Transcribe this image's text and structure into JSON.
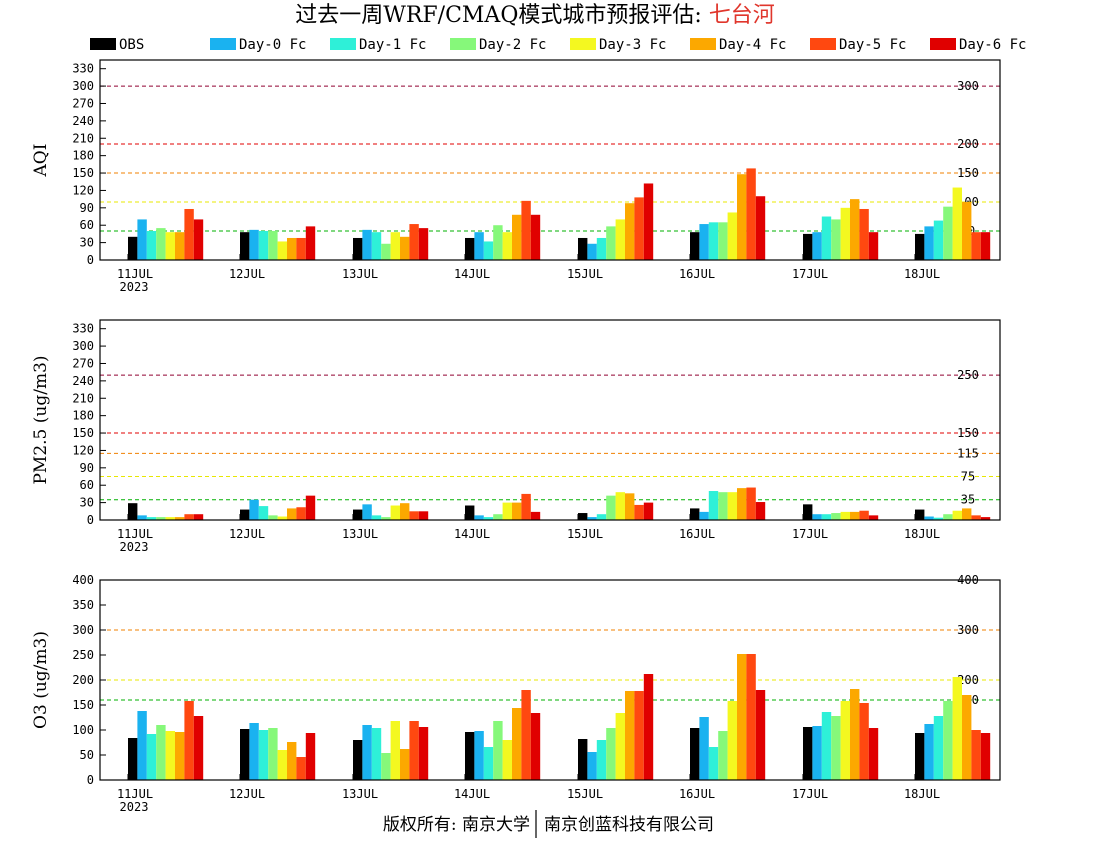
{
  "title": {
    "prefix": "过去一周WRF/CMAQ模式城市预报评估: ",
    "city": "七台河"
  },
  "colors": {
    "city": "#e0362c",
    "series": [
      "#000000",
      "#1ab2f0",
      "#2ef0d8",
      "#86f87a",
      "#f4f820",
      "#fca800",
      "#ff4810",
      "#e00000"
    ]
  },
  "legend": [
    "OBS",
    "Day-0 Fc",
    "Day-1 Fc",
    "Day-2 Fc",
    "Day-3 Fc",
    "Day-4 Fc",
    "Day-5 Fc",
    "Day-6 Fc"
  ],
  "footer": {
    "left": "版权所有: 南京大学",
    "right": "南京创蓝科技有限公司"
  },
  "chart_data": [
    {
      "type": "bar",
      "ylabel": "AQI",
      "ylim": [
        0,
        345
      ],
      "yticks": [
        0,
        30,
        60,
        90,
        120,
        150,
        180,
        210,
        240,
        270,
        300,
        330
      ],
      "categories": [
        "11JUL",
        "12JUL",
        "13JUL",
        "14JUL",
        "15JUL",
        "16JUL",
        "17JUL",
        "18JUL"
      ],
      "year_label": "2023",
      "thresholds": [
        {
          "value": 50,
          "label": "50",
          "color": "#00b000"
        },
        {
          "value": 100,
          "label": "100",
          "color": "#e8e800"
        },
        {
          "value": 150,
          "label": "150",
          "color": "#f08000"
        },
        {
          "value": 200,
          "label": "200",
          "color": "#e00000"
        },
        {
          "value": 300,
          "label": "300",
          "color": "#900030"
        }
      ],
      "series": [
        {
          "name": "OBS",
          "values": [
            40,
            48,
            38,
            38,
            38,
            48,
            45,
            45
          ]
        },
        {
          "name": "Day-0 Fc",
          "values": [
            70,
            52,
            52,
            48,
            28,
            62,
            48,
            58
          ]
        },
        {
          "name": "Day-1 Fc",
          "values": [
            50,
            50,
            48,
            32,
            38,
            65,
            75,
            68
          ]
        },
        {
          "name": "Day-2 Fc",
          "values": [
            55,
            50,
            28,
            60,
            58,
            65,
            70,
            92
          ]
        },
        {
          "name": "Day-3 Fc",
          "values": [
            48,
            32,
            48,
            48,
            70,
            82,
            90,
            125
          ]
        },
        {
          "name": "Day-4 Fc",
          "values": [
            48,
            38,
            40,
            78,
            98,
            148,
            105,
            100
          ]
        },
        {
          "name": "Day-5 Fc",
          "values": [
            88,
            38,
            62,
            102,
            108,
            158,
            88,
            48
          ]
        },
        {
          "name": "Day-6 Fc",
          "values": [
            70,
            58,
            55,
            78,
            132,
            110,
            48,
            48
          ]
        }
      ]
    },
    {
      "type": "bar",
      "ylabel": "PM2.5 (ug/m3)",
      "ylim": [
        0,
        345
      ],
      "yticks": [
        0,
        30,
        60,
        90,
        120,
        150,
        180,
        210,
        240,
        270,
        300,
        330
      ],
      "categories": [
        "11JUL",
        "12JUL",
        "13JUL",
        "14JUL",
        "15JUL",
        "16JUL",
        "17JUL",
        "18JUL"
      ],
      "year_label": "2023",
      "thresholds": [
        {
          "value": 35,
          "label": "35",
          "color": "#00b000"
        },
        {
          "value": 75,
          "label": "75",
          "color": "#e8e800"
        },
        {
          "value": 115,
          "label": "115",
          "color": "#f08000"
        },
        {
          "value": 150,
          "label": "150",
          "color": "#e00000"
        },
        {
          "value": 250,
          "label": "250",
          "color": "#900030"
        }
      ],
      "series": [
        {
          "name": "OBS",
          "values": [
            29,
            18,
            18,
            25,
            12,
            20,
            27,
            18
          ]
        },
        {
          "name": "Day-0 Fc",
          "values": [
            8,
            35,
            27,
            8,
            5,
            14,
            10,
            6
          ]
        },
        {
          "name": "Day-1 Fc",
          "values": [
            5,
            24,
            8,
            5,
            10,
            50,
            10,
            4
          ]
        },
        {
          "name": "Day-2 Fc",
          "values": [
            5,
            8,
            5,
            10,
            42,
            48,
            12,
            10
          ]
        },
        {
          "name": "Day-3 Fc",
          "values": [
            5,
            6,
            25,
            30,
            48,
            48,
            14,
            16
          ]
        },
        {
          "name": "Day-4 Fc",
          "values": [
            5,
            20,
            29,
            30,
            46,
            55,
            14,
            20
          ]
        },
        {
          "name": "Day-5 Fc",
          "values": [
            10,
            22,
            15,
            45,
            26,
            56,
            16,
            8
          ]
        },
        {
          "name": "Day-6 Fc",
          "values": [
            10,
            42,
            15,
            14,
            30,
            31,
            8,
            5
          ]
        }
      ]
    },
    {
      "type": "bar",
      "ylabel": "O3 (ug/m3)",
      "ylim": [
        0,
        400
      ],
      "yticks": [
        0,
        50,
        100,
        150,
        200,
        250,
        300,
        350,
        400
      ],
      "categories": [
        "11JUL",
        "12JUL",
        "13JUL",
        "14JUL",
        "15JUL",
        "16JUL",
        "17JUL",
        "18JUL"
      ],
      "year_label": "2023",
      "thresholds": [
        {
          "value": 160,
          "label": "160",
          "color": "#00b000"
        },
        {
          "value": 200,
          "label": "200",
          "color": "#e8e800"
        },
        {
          "value": 300,
          "label": "300",
          "color": "#f08000"
        },
        {
          "value": 400,
          "label": "400",
          "color": "#e00000"
        }
      ],
      "series": [
        {
          "name": "OBS",
          "values": [
            84,
            102,
            80,
            96,
            82,
            104,
            106,
            94
          ]
        },
        {
          "name": "Day-0 Fc",
          "values": [
            138,
            114,
            110,
            98,
            56,
            126,
            108,
            112
          ]
        },
        {
          "name": "Day-1 Fc",
          "values": [
            92,
            100,
            104,
            66,
            80,
            66,
            136,
            128
          ]
        },
        {
          "name": "Day-2 Fc",
          "values": [
            110,
            104,
            54,
            118,
            104,
            98,
            128,
            158
          ]
        },
        {
          "name": "Day-3 Fc",
          "values": [
            98,
            60,
            118,
            80,
            134,
            158,
            158,
            206
          ]
        },
        {
          "name": "Day-4 Fc",
          "values": [
            96,
            76,
            62,
            144,
            178,
            252,
            182,
            170
          ]
        },
        {
          "name": "Day-5 Fc",
          "values": [
            158,
            46,
            118,
            180,
            178,
            252,
            154,
            100
          ]
        },
        {
          "name": "Day-6 Fc",
          "values": [
            128,
            94,
            106,
            134,
            212,
            180,
            104,
            94
          ]
        }
      ]
    }
  ]
}
